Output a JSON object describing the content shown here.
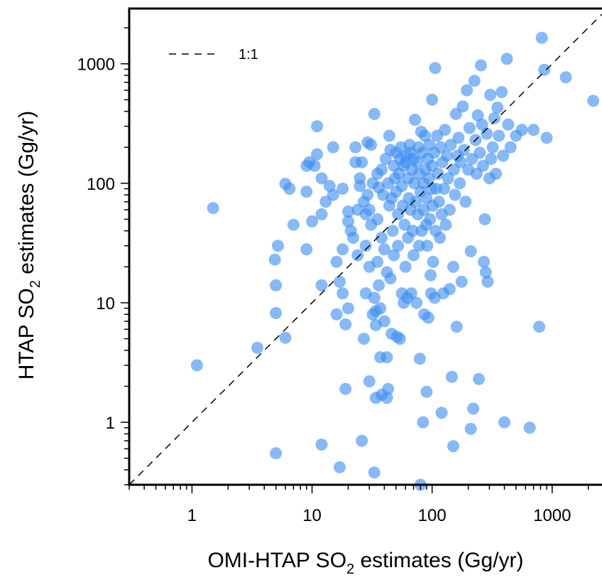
{
  "chart_data": {
    "type": "scatter",
    "xscale": "log",
    "yscale": "log",
    "xlim": [
      0.3,
      2600
    ],
    "ylim": [
      0.3,
      2900
    ],
    "xlabel": {
      "pre": "OMI-HTAP SO",
      "sub": "2",
      "post": " estimates (Gg/yr)"
    },
    "ylabel": {
      "pre": "HTAP SO",
      "sub": "2",
      "post": " estimates (Gg/yr)"
    },
    "x_ticks": [
      {
        "value": 1,
        "label": "1"
      },
      {
        "value": 10,
        "label": "10"
      },
      {
        "value": 100,
        "label": "100"
      },
      {
        "value": 1000,
        "label": "1000"
      }
    ],
    "y_ticks": [
      {
        "value": 1,
        "label": "1"
      },
      {
        "value": 10,
        "label": "10"
      },
      {
        "value": 100,
        "label": "100"
      },
      {
        "value": 1000,
        "label": "1000"
      }
    ],
    "reference_line": {
      "label": "1:1",
      "style": "dashed",
      "color": "#000000"
    },
    "legend_position": "top-left",
    "point_color": "#3d8ef0",
    "point_opacity": 0.62,
    "grid": false,
    "points": [
      [
        1.1,
        3.0
      ],
      [
        1.5,
        62
      ],
      [
        3.5,
        4.2
      ],
      [
        5,
        0.55
      ],
      [
        5,
        8.2
      ],
      [
        5,
        14
      ],
      [
        4.9,
        23
      ],
      [
        5.2,
        30
      ],
      [
        6,
        5.1
      ],
      [
        6,
        99
      ],
      [
        6.5,
        90
      ],
      [
        7,
        45
      ],
      [
        9,
        28
      ],
      [
        9,
        85
      ],
      [
        9,
        140
      ],
      [
        9.5,
        150
      ],
      [
        10,
        48
      ],
      [
        10.5,
        140
      ],
      [
        11,
        175
      ],
      [
        11,
        300
      ],
      [
        12,
        0.65
      ],
      [
        12,
        14
      ],
      [
        12,
        55
      ],
      [
        12,
        110
      ],
      [
        13,
        70
      ],
      [
        14,
        95
      ],
      [
        15,
        200
      ],
      [
        15,
        80
      ],
      [
        16,
        22
      ],
      [
        16,
        8
      ],
      [
        17,
        0.42
      ],
      [
        17,
        15
      ],
      [
        18,
        28
      ],
      [
        18,
        12
      ],
      [
        18,
        90
      ],
      [
        19,
        6.6
      ],
      [
        19,
        1.9
      ],
      [
        20,
        48
      ],
      [
        20,
        58
      ],
      [
        20,
        9
      ],
      [
        21,
        40
      ],
      [
        22,
        35
      ],
      [
        23,
        200
      ],
      [
        23,
        150
      ],
      [
        24,
        60
      ],
      [
        24,
        25
      ],
      [
        25,
        110
      ],
      [
        25,
        95
      ],
      [
        26,
        0.7
      ],
      [
        26,
        150
      ],
      [
        27,
        5
      ],
      [
        27,
        70
      ],
      [
        28,
        55
      ],
      [
        28,
        12
      ],
      [
        28,
        30
      ],
      [
        29,
        220
      ],
      [
        29,
        80
      ],
      [
        30,
        2.2
      ],
      [
        30,
        60
      ],
      [
        30,
        20
      ],
      [
        31,
        210
      ],
      [
        31,
        45
      ],
      [
        32,
        8
      ],
      [
        32,
        100
      ],
      [
        33,
        0.38
      ],
      [
        33,
        380
      ],
      [
        33,
        11
      ],
      [
        34,
        1.6
      ],
      [
        34,
        6.5
      ],
      [
        34,
        8.5
      ],
      [
        35,
        22
      ],
      [
        35,
        120
      ],
      [
        35,
        50
      ],
      [
        36,
        14
      ],
      [
        36,
        92
      ],
      [
        37,
        3.5
      ],
      [
        37,
        9
      ],
      [
        38,
        1.7
      ],
      [
        38,
        35
      ],
      [
        38,
        130
      ],
      [
        39,
        80
      ],
      [
        40,
        28
      ],
      [
        40,
        7
      ],
      [
        41,
        160
      ],
      [
        42,
        1.6
      ],
      [
        42,
        18
      ],
      [
        42,
        3.5
      ],
      [
        43,
        1.9
      ],
      [
        43,
        100
      ],
      [
        44,
        250
      ],
      [
        44,
        65
      ],
      [
        45,
        16
      ],
      [
        45,
        190
      ],
      [
        46,
        5.5
      ],
      [
        46,
        75
      ],
      [
        47,
        40
      ],
      [
        48,
        140
      ],
      [
        48,
        25
      ],
      [
        49,
        110
      ],
      [
        50,
        85
      ],
      [
        50,
        180
      ],
      [
        51,
        5.2
      ],
      [
        52,
        55
      ],
      [
        52,
        30
      ],
      [
        53,
        120
      ],
      [
        54,
        5.0
      ],
      [
        54,
        160
      ],
      [
        55,
        200
      ],
      [
        56,
        12
      ],
      [
        56,
        95
      ],
      [
        57,
        65
      ],
      [
        58,
        140
      ],
      [
        58,
        10
      ],
      [
        59,
        45
      ],
      [
        60,
        20
      ],
      [
        60,
        150
      ],
      [
        61,
        170
      ],
      [
        62,
        11
      ],
      [
        63,
        110
      ],
      [
        63,
        35
      ],
      [
        64,
        75
      ],
      [
        65,
        210
      ],
      [
        66,
        180
      ],
      [
        66,
        60
      ],
      [
        67,
        12
      ],
      [
        68,
        130
      ],
      [
        69,
        40
      ],
      [
        70,
        25
      ],
      [
        70,
        160
      ],
      [
        71,
        100
      ],
      [
        72,
        340
      ],
      [
        73,
        70
      ],
      [
        74,
        10
      ],
      [
        75,
        150
      ],
      [
        76,
        55
      ],
      [
        77,
        200
      ],
      [
        78,
        120
      ],
      [
        78,
        30
      ],
      [
        79,
        3.4
      ],
      [
        80,
        0.3
      ],
      [
        80,
        85
      ],
      [
        81,
        270
      ],
      [
        82,
        40
      ],
      [
        83,
        180
      ],
      [
        84,
        1.0
      ],
      [
        85,
        100
      ],
      [
        85,
        60
      ],
      [
        86,
        8
      ],
      [
        87,
        250
      ],
      [
        88,
        130
      ],
      [
        89,
        45
      ],
      [
        90,
        1.8
      ],
      [
        90,
        75
      ],
      [
        91,
        30
      ],
      [
        92,
        160
      ],
      [
        93,
        7.5
      ],
      [
        94,
        110
      ],
      [
        95,
        210
      ],
      [
        96,
        50
      ],
      [
        97,
        17
      ],
      [
        98,
        12
      ],
      [
        99,
        90
      ],
      [
        100,
        140
      ],
      [
        100,
        500
      ],
      [
        101,
        65
      ],
      [
        102,
        22
      ],
      [
        104,
        180
      ],
      [
        105,
        11
      ],
      [
        106,
        920
      ],
      [
        107,
        40
      ],
      [
        108,
        90
      ],
      [
        110,
        250
      ],
      [
        112,
        120
      ],
      [
        114,
        70
      ],
      [
        116,
        35
      ],
      [
        118,
        200
      ],
      [
        120,
        1.2
      ],
      [
        120,
        55
      ],
      [
        122,
        150
      ],
      [
        124,
        12
      ],
      [
        126,
        90
      ],
      [
        128,
        280
      ],
      [
        130,
        45
      ],
      [
        133,
        170
      ],
      [
        136,
        110
      ],
      [
        140,
        13
      ],
      [
        140,
        60
      ],
      [
        143,
        210
      ],
      [
        146,
        2.4
      ],
      [
        150,
        0.63
      ],
      [
        150,
        20
      ],
      [
        152,
        130
      ],
      [
        155,
        80
      ],
      [
        158,
        380
      ],
      [
        160,
        6.3
      ],
      [
        163,
        170
      ],
      [
        166,
        240
      ],
      [
        170,
        100
      ],
      [
        173,
        150
      ],
      [
        176,
        15
      ],
      [
        180,
        440
      ],
      [
        184,
        190
      ],
      [
        190,
        70
      ],
      [
        195,
        600
      ],
      [
        200,
        130
      ],
      [
        205,
        290
      ],
      [
        210,
        0.88
      ],
      [
        210,
        27
      ],
      [
        215,
        160
      ],
      [
        220,
        1.3
      ],
      [
        225,
        720
      ],
      [
        230,
        230
      ],
      [
        235,
        120
      ],
      [
        240,
        370
      ],
      [
        245,
        2.3
      ],
      [
        250,
        180
      ],
      [
        255,
        970
      ],
      [
        260,
        310
      ],
      [
        265,
        140
      ],
      [
        270,
        22
      ],
      [
        275,
        50
      ],
      [
        280,
        18
      ],
      [
        285,
        260
      ],
      [
        290,
        15
      ],
      [
        300,
        110
      ],
      [
        305,
        550
      ],
      [
        310,
        160
      ],
      [
        320,
        200
      ],
      [
        330,
        350
      ],
      [
        340,
        120
      ],
      [
        350,
        430
      ],
      [
        360,
        250
      ],
      [
        380,
        580
      ],
      [
        390,
        170
      ],
      [
        400,
        1.0
      ],
      [
        420,
        1100
      ],
      [
        430,
        310
      ],
      [
        450,
        200
      ],
      [
        500,
        250
      ],
      [
        560,
        280
      ],
      [
        650,
        0.9
      ],
      [
        700,
        280
      ],
      [
        780,
        6.3
      ],
      [
        820,
        1650
      ],
      [
        860,
        890
      ],
      [
        900,
        240
      ],
      [
        1300,
        770
      ],
      [
        2200,
        490
      ]
    ]
  }
}
